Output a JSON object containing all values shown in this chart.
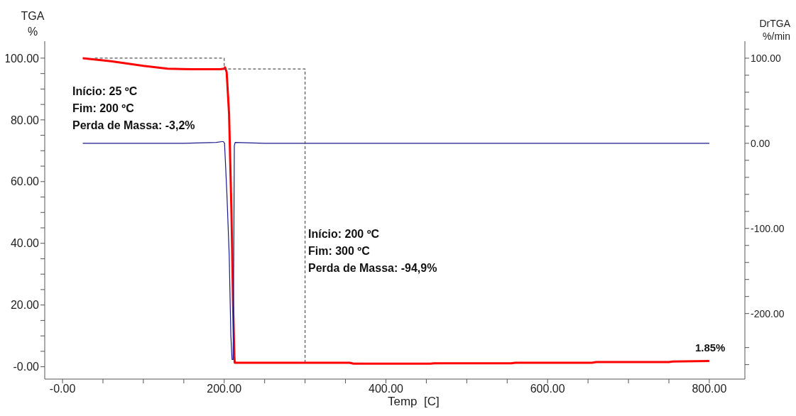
{
  "chart_data": {
    "type": "line",
    "xlabel": "Temp  [C]",
    "ylabel": "TGA\n%",
    "y2label": "DrTGA\n%/min",
    "xlim": [
      -22,
      844
    ],
    "xticks": [
      {
        "value": 0,
        "label": "-0.00"
      },
      {
        "value": 50,
        "label": null
      },
      {
        "value": 100,
        "label": null
      },
      {
        "value": 150,
        "label": null
      },
      {
        "value": 200,
        "label": "200.00"
      },
      {
        "value": 250,
        "label": null
      },
      {
        "value": 300,
        "label": null
      },
      {
        "value": 350,
        "label": null
      },
      {
        "value": 400,
        "label": "400.00"
      },
      {
        "value": 450,
        "label": null
      },
      {
        "value": 500,
        "label": null
      },
      {
        "value": 550,
        "label": null
      },
      {
        "value": 600,
        "label": "600.00"
      },
      {
        "value": 650,
        "label": null
      },
      {
        "value": 700,
        "label": null
      },
      {
        "value": 750,
        "label": null
      },
      {
        "value": 800,
        "label": "800.00"
      }
    ],
    "ylim": [
      -4,
      105.5
    ],
    "yticks": [
      {
        "value": 0,
        "label": "-0.00"
      },
      {
        "value": 5,
        "label": null
      },
      {
        "value": 10,
        "label": null
      },
      {
        "value": 15,
        "label": null
      },
      {
        "value": 20,
        "label": "20.00"
      },
      {
        "value": 25,
        "label": null
      },
      {
        "value": 30,
        "label": null
      },
      {
        "value": 35,
        "label": null
      },
      {
        "value": 40,
        "label": "40.00"
      },
      {
        "value": 45,
        "label": null
      },
      {
        "value": 50,
        "label": null
      },
      {
        "value": 55,
        "label": null
      },
      {
        "value": 60,
        "label": "60.00"
      },
      {
        "value": 65,
        "label": null
      },
      {
        "value": 70,
        "label": null
      },
      {
        "value": 75,
        "label": null
      },
      {
        "value": 80,
        "label": "80.00"
      },
      {
        "value": 85,
        "label": null
      },
      {
        "value": 90,
        "label": null
      },
      {
        "value": 95,
        "label": null
      },
      {
        "value": 100,
        "label": "100.00"
      }
    ],
    "y2lim": [
      -277,
      120
    ],
    "y2ticks": [
      {
        "value": -260,
        "label": null
      },
      {
        "value": -240,
        "label": null
      },
      {
        "value": -200,
        "label": "-200.00"
      },
      {
        "value": -180,
        "label": null
      },
      {
        "value": -160,
        "label": null
      },
      {
        "value": -140,
        "label": null
      },
      {
        "value": -120,
        "label": null
      },
      {
        "value": -100,
        "label": "-100.00"
      },
      {
        "value": -80,
        "label": null
      },
      {
        "value": -60,
        "label": null
      },
      {
        "value": -40,
        "label": null
      },
      {
        "value": -20,
        "label": null
      },
      {
        "value": 0,
        "label": "0.00"
      },
      {
        "value": 20,
        "label": null
      },
      {
        "value": 40,
        "label": null
      },
      {
        "value": 60,
        "label": null
      },
      {
        "value": 80,
        "label": null
      },
      {
        "value": 100,
        "label": "100.00"
      }
    ],
    "marker": "none",
    "series": [
      {
        "color": "#ff0000",
        "x": [
          25,
          60,
          100,
          130,
          160,
          195,
          200,
          201,
          203,
          206,
          209,
          211,
          212.5,
          213,
          300,
          355,
          360,
          455,
          460,
          555,
          560,
          655,
          660,
          750,
          755,
          800
        ],
        "values": [
          100,
          99,
          97.5,
          96.6,
          96.4,
          96.4,
          96.6,
          97,
          95.5,
          82,
          49.6,
          20,
          3.5,
          1.3,
          1.3,
          1.3,
          1.0,
          1.0,
          1.1,
          1.1,
          1.3,
          1.3,
          1.5,
          1.5,
          1.7,
          1.85
        ]
      },
      {
        "color": "#1a1a8c",
        "axis": "y2",
        "x": [
          25,
          150,
          190,
          197,
          199,
          200.4,
          203.3,
          206.2,
          208.2,
          209.7,
          211,
          212,
          212.5,
          213.5,
          250,
          400,
          600,
          800
        ],
        "values": [
          0,
          0,
          1,
          2,
          2,
          0,
          -59,
          -132,
          -226,
          -254,
          -254,
          -100,
          -3,
          1,
          0,
          0,
          0,
          0
        ]
      },
      {
        "color": "#555555",
        "line_style": "dotted",
        "x": [
          40,
          200,
          200,
          300,
          300
        ],
        "values": [
          100,
          100,
          96.5,
          96.5,
          1.3
        ]
      }
    ],
    "annotations": [
      "Início: 25 ºC",
      "Fim: 200 ºC",
      "Perda de Massa: -3,2%",
      "Início: 200 ºC",
      "Fim: 300 ºC",
      "Perda de Massa: -94,9%",
      {
        "text": "1.85%",
        "x": 800,
        "y": 1.85
      }
    ]
  }
}
